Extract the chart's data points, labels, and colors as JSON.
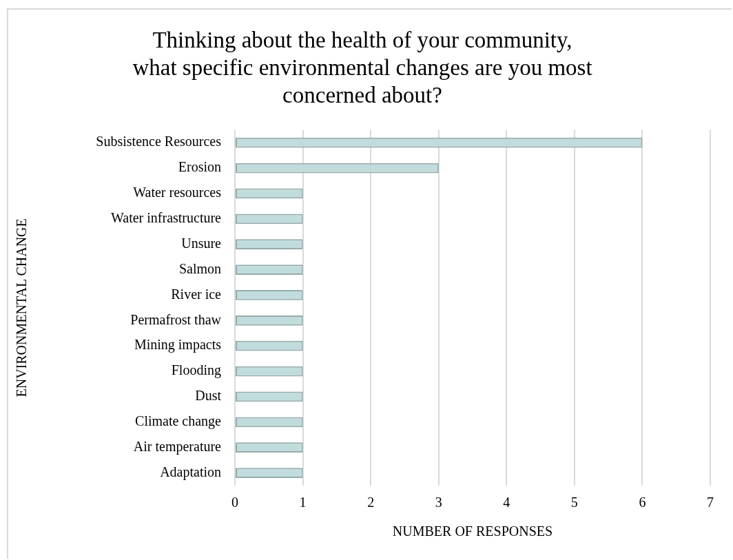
{
  "chart_data": {
    "type": "bar",
    "orientation": "horizontal",
    "title": "Thinking about the health of your community,\nwhat specific environmental changes are you most\nconcerned about?",
    "xlabel": "NUMBER OF RESPONSES",
    "ylabel": "ENVIRONMENTAL CHANGE",
    "categories": [
      "Subsistence Resources",
      "Erosion",
      "Water resources",
      "Water infrastructure",
      "Unsure",
      "Salmon",
      "River ice",
      "Permafrost thaw",
      "Mining impacts",
      "Flooding",
      "Dust",
      "Climate change",
      "Air temperature",
      "Adaptation"
    ],
    "values": [
      6,
      3,
      1,
      1,
      1,
      1,
      1,
      1,
      1,
      1,
      1,
      1,
      1,
      1
    ],
    "color": "#c1dcdc",
    "xlim": [
      0,
      7
    ],
    "xticks": [
      0,
      1,
      2,
      3,
      4,
      5,
      6,
      7
    ],
    "grid": "x"
  }
}
